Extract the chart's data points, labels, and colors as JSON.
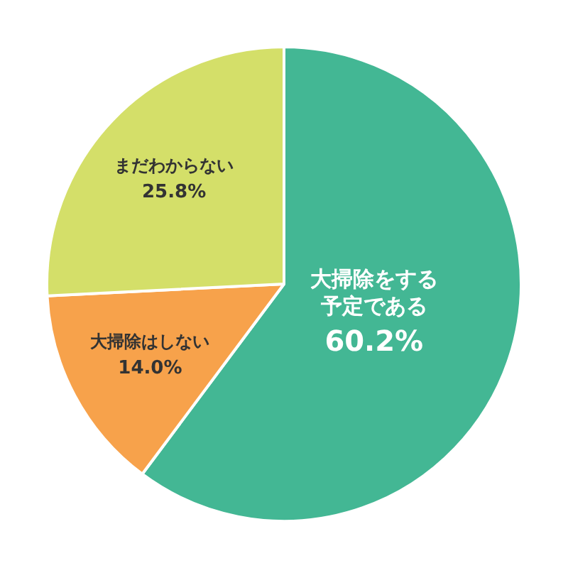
{
  "chart_data": {
    "type": "pie",
    "categories": [
      "大掃除をする予定である",
      "大掃除はしない",
      "まだわからない"
    ],
    "values": [
      60.2,
      14.0,
      25.8
    ],
    "value_labels": [
      "60.2%",
      "14.0%",
      "25.8%"
    ],
    "colors": [
      "#43b794",
      "#f7a24b",
      "#d4df69"
    ],
    "legend": false
  }
}
